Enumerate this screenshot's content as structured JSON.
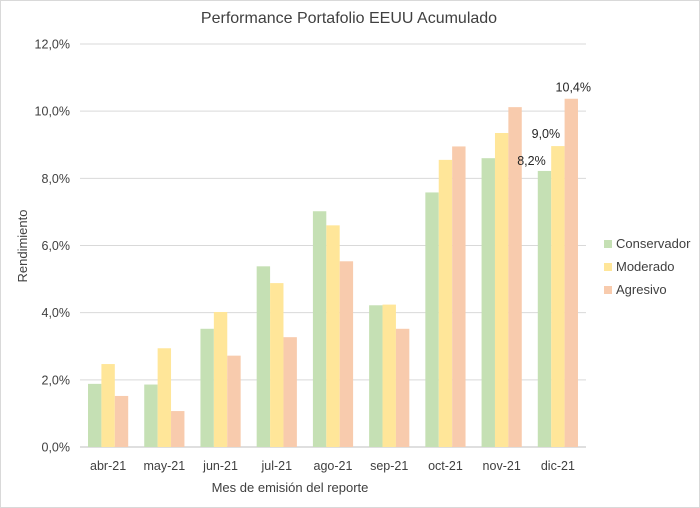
{
  "chart_data": {
    "type": "bar",
    "title": "Performance Portafolio EEUU Acumulado",
    "xlabel": "Mes de emisión del reporte",
    "ylabel": "Rendimiento",
    "ylim": [
      0,
      12
    ],
    "yticks": [
      0,
      2,
      4,
      6,
      8,
      10,
      12
    ],
    "ytick_labels": [
      "0,0%",
      "2,0%",
      "4,0%",
      "6,0%",
      "8,0%",
      "10,0%",
      "12,0%"
    ],
    "grid": true,
    "legend_position": "right",
    "categories": [
      "abr-21",
      "may-21",
      "jun-21",
      "jul-21",
      "ago-21",
      "sep-21",
      "oct-21",
      "nov-21",
      "dic-21"
    ],
    "series": [
      {
        "name": "Conservador",
        "color": "#c5e0b4",
        "values": [
          1.88,
          1.86,
          3.52,
          5.38,
          7.02,
          4.22,
          7.58,
          8.6,
          8.22
        ]
      },
      {
        "name": "Moderado",
        "color": "#ffe699",
        "values": [
          2.47,
          2.94,
          4.02,
          4.88,
          6.6,
          4.24,
          8.55,
          9.35,
          8.96
        ]
      },
      {
        "name": "Agresivo",
        "color": "#f8cbad",
        "values": [
          1.52,
          1.07,
          2.72,
          3.27,
          5.53,
          3.52,
          8.95,
          10.12,
          10.37
        ]
      }
    ],
    "data_labels": [
      {
        "series": 0,
        "category": 8,
        "text": "8,2%"
      },
      {
        "series": 1,
        "category": 8,
        "text": "9,0%"
      },
      {
        "series": 2,
        "category": 8,
        "text": "10,4%"
      }
    ],
    "colors": {
      "grid": "#d9d9d9",
      "axis": "#bfbfbf",
      "text": "#404040"
    }
  }
}
